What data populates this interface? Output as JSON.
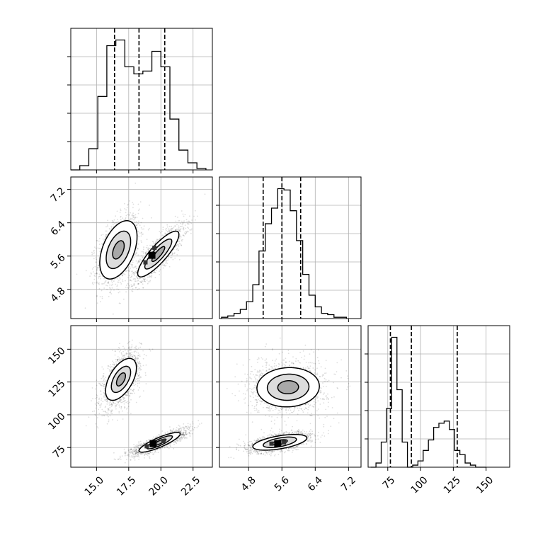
{
  "figure": {
    "type": "corner-plot"
  },
  "params": [
    {
      "ticks": [
        15.0,
        17.5,
        20.0,
        22.5
      ],
      "tick_labels": [
        "15.0",
        "17.5",
        "20.0",
        "22.5"
      ],
      "range": [
        13.0,
        24.0
      ]
    },
    {
      "ticks": [
        4.8,
        5.6,
        6.4,
        7.2
      ],
      "tick_labels": [
        "4.8",
        "5.6",
        "6.4",
        "7.2"
      ],
      "range": [
        4.1,
        7.5
      ]
    },
    {
      "ticks": [
        75,
        100,
        125,
        150
      ],
      "tick_labels": [
        "75",
        "100",
        "125",
        "150"
      ],
      "range": [
        60,
        168
      ]
    }
  ],
  "chart_data": [
    {
      "type": "histogram",
      "panel": "p0",
      "param": 0,
      "bins": [
        13.0,
        13.7,
        14.4,
        15.1,
        15.8,
        16.5,
        17.2,
        17.9,
        18.6,
        19.3,
        20.0,
        20.7,
        21.4,
        22.1,
        22.8,
        23.5
      ],
      "counts": [
        0,
        3,
        15,
        52,
        88,
        92,
        73,
        68,
        70,
        84,
        73,
        36,
        14,
        5,
        1
      ],
      "quantiles": [
        16.4,
        18.3,
        20.3
      ],
      "grid": true
    },
    {
      "type": "histogram",
      "panel": "p1",
      "param": 1,
      "bins": [
        4.15,
        4.3,
        4.45,
        4.6,
        4.75,
        4.9,
        5.05,
        5.2,
        5.35,
        5.5,
        5.65,
        5.8,
        5.95,
        6.1,
        6.25,
        6.4,
        6.55,
        6.7,
        6.85,
        7.0,
        7.15
      ],
      "counts": [
        1,
        2,
        4,
        7,
        13,
        26,
        52,
        73,
        85,
        100,
        99,
        83,
        60,
        34,
        18,
        9,
        4,
        3,
        1,
        1
      ],
      "quantiles": [
        5.15,
        5.6,
        6.05
      ],
      "grid": true
    },
    {
      "type": "histogram",
      "panel": "p2",
      "param": 2,
      "bins": [
        62,
        66,
        70,
        74,
        78,
        82,
        86,
        90,
        94,
        98,
        102,
        106,
        110,
        114,
        118,
        122,
        126,
        130,
        134,
        138,
        142,
        146,
        150
      ],
      "counts": [
        0,
        2,
        12,
        28,
        62,
        37,
        12,
        0,
        1,
        3,
        8,
        13,
        19,
        21,
        22,
        18,
        8,
        6,
        2,
        1,
        0,
        0
      ],
      "quantiles": [
        77,
        93,
        128
      ],
      "grid": true
    },
    {
      "type": "scatter-contour",
      "panel": "p10",
      "params": [
        0,
        1
      ],
      "clusters": [
        {
          "center": [
            16.7,
            5.75
          ],
          "spread": [
            0.8,
            0.42
          ],
          "corr": 0.45,
          "n": 1500,
          "levels": [
            {
              "sx": 0.45,
              "sy": 0.22
            },
            {
              "sx": 0.95,
              "sy": 0.45
            },
            {
              "sx": 1.45,
              "sy": 0.7
            }
          ]
        },
        {
          "center": [
            19.8,
            5.65
          ],
          "spread": [
            1.0,
            0.34
          ],
          "corr": 0.85,
          "n": 1500,
          "levels": [
            {
              "sx": 0.5,
              "sy": 0.18
            },
            {
              "sx": 1.05,
              "sy": 0.36
            },
            {
              "sx": 1.6,
              "sy": 0.55
            }
          ]
        }
      ],
      "peaks": [
        [
          19.3,
          5.62
        ],
        [
          18.8,
          5.45
        ],
        [
          19.5,
          5.8
        ]
      ],
      "grid": true
    },
    {
      "type": "scatter-contour",
      "panel": "p20",
      "params": [
        0,
        2
      ],
      "clusters": [
        {
          "center": [
            16.9,
            127
          ],
          "spread": [
            0.75,
            11
          ],
          "corr": 0.55,
          "n": 1500,
          "levels": [
            {
              "sx": 0.35,
              "sy": 5
            },
            {
              "sx": 0.75,
              "sy": 10
            },
            {
              "sx": 1.2,
              "sy": 16
            }
          ]
        },
        {
          "center": [
            19.9,
            79
          ],
          "spread": [
            1.1,
            5
          ],
          "corr": 0.85,
          "n": 1500,
          "levels": [
            {
              "sx": 0.5,
              "sy": 2.5
            },
            {
              "sx": 1.0,
              "sy": 5
            },
            {
              "sx": 1.6,
              "sy": 7.5
            }
          ]
        }
      ],
      "peaks": [
        [
          19.4,
          78
        ],
        [
          18.9,
          76
        ],
        [
          20.2,
          80
        ]
      ],
      "grid": true
    },
    {
      "type": "scatter-contour",
      "panel": "p21",
      "params": [
        1,
        2
      ],
      "clusters": [
        {
          "center": [
            5.75,
            121
          ],
          "spread": [
            0.45,
            10
          ],
          "corr": 0.05,
          "n": 1500,
          "levels": [
            {
              "sx": 0.25,
              "sy": 5
            },
            {
              "sx": 0.5,
              "sy": 10
            },
            {
              "sx": 0.75,
              "sy": 15
            }
          ]
        },
        {
          "center": [
            5.55,
            79
          ],
          "spread": [
            0.38,
            3.8
          ],
          "corr": 0.55,
          "n": 1500,
          "levels": [
            {
              "sx": 0.18,
              "sy": 2
            },
            {
              "sx": 0.4,
              "sy": 4
            },
            {
              "sx": 0.65,
              "sy": 6
            }
          ]
        }
      ],
      "peaks": [
        [
          5.5,
          78
        ],
        [
          5.35,
          78
        ],
        [
          5.65,
          79
        ]
      ],
      "grid": true
    }
  ]
}
